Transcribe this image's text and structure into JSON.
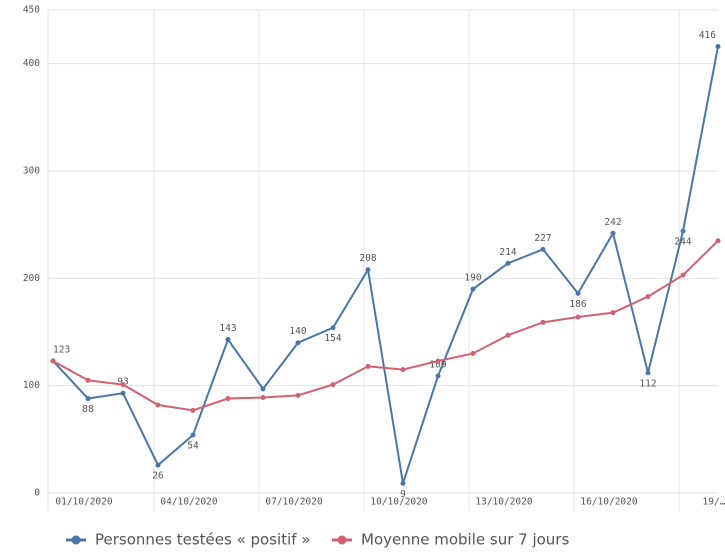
{
  "chart_data": {
    "type": "line",
    "categories": [
      null,
      "01/10/2020",
      null,
      null,
      "04/10/2020",
      null,
      null,
      "07/10/2020",
      null,
      null,
      "10/10/2020",
      null,
      null,
      "13/10/2020",
      null,
      null,
      "16/10/2020",
      null,
      null,
      "19/…"
    ],
    "series": [
      {
        "name": "Personnes testées « positif »",
        "color": "#4a77a8",
        "values": [
          123,
          88,
          93,
          26,
          54,
          143,
          97,
          140,
          154,
          208,
          9,
          109,
          190,
          214,
          227,
          186,
          242,
          112,
          244,
          416
        ],
        "value_labels": [
          "123",
          "88",
          "93",
          "26",
          "54",
          "143",
          null,
          "140",
          "154",
          "208",
          "9",
          "109",
          "190",
          "214",
          "227",
          "186",
          "242",
          "112",
          "244",
          "416"
        ]
      },
      {
        "name": "Moyenne mobile sur 7 jours",
        "color": "#d26273",
        "values": [
          123,
          105,
          101,
          82,
          77,
          88,
          89,
          91,
          101,
          118,
          115,
          123,
          130,
          147,
          159,
          164,
          168,
          183,
          203,
          235
        ]
      }
    ],
    "ylim": [
      0,
      450
    ],
    "yticks": [
      0,
      100,
      200,
      300,
      400,
      450
    ],
    "grid": true
  }
}
